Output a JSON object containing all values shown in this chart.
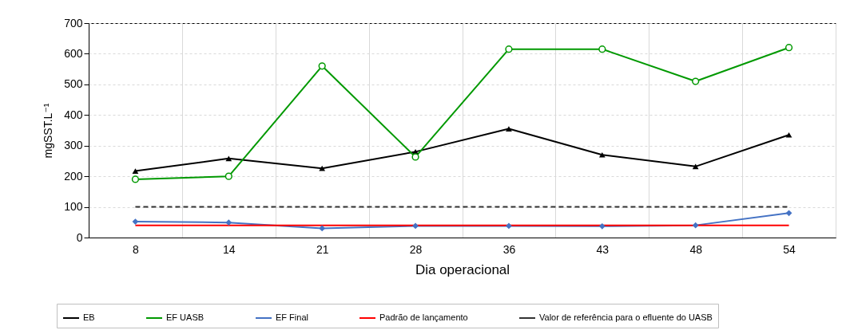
{
  "chart_data": {
    "type": "line",
    "xlabel": "Dia operacional",
    "ylabel": "mgSST.L⁻¹",
    "categories": [
      "8",
      "14",
      "21",
      "28",
      "36",
      "43",
      "48",
      "54"
    ],
    "series": [
      {
        "name": "EB",
        "color": "#000000",
        "marker": "triangle",
        "line_style": "solid",
        "values": [
          217,
          258,
          226,
          280,
          355,
          270,
          232,
          335
        ]
      },
      {
        "name": "EF UASB",
        "color": "#009900",
        "marker": "circle",
        "line_style": "solid",
        "values": [
          190,
          200,
          560,
          263,
          615,
          615,
          510,
          620
        ]
      },
      {
        "name": "EF Final",
        "color": "#4472c4",
        "marker": "diamond",
        "line_style": "solid",
        "values": [
          52,
          49,
          30,
          38,
          38,
          37,
          40,
          80
        ]
      },
      {
        "name": "Padrão de lançamento",
        "color": "#ff0000",
        "marker": "none",
        "line_style": "solid",
        "values": [
          40,
          40,
          40,
          40,
          40,
          40,
          40,
          40
        ]
      },
      {
        "name": "Valor de referência para o efluente do UASB",
        "color": "#333333",
        "marker": "none",
        "line_style": "dashed",
        "values": [
          100,
          100,
          100,
          100,
          100,
          100,
          100,
          100
        ]
      }
    ],
    "ylim": [
      0,
      700
    ],
    "yticks": [
      0,
      100,
      200,
      300,
      400,
      500,
      600,
      700
    ],
    "grid": true,
    "legend": "bottom"
  }
}
